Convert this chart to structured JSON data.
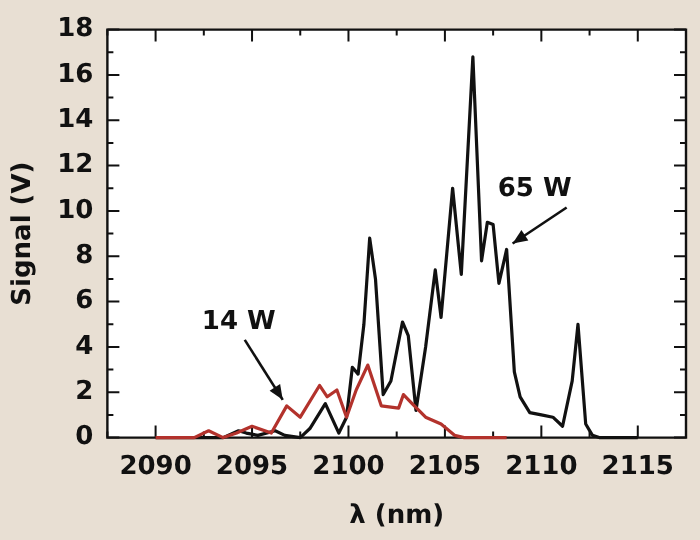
{
  "chart_data": {
    "type": "line",
    "xlabel": "λ (nm)",
    "ylabel": "Signal (V)",
    "xlim": [
      2087.5,
      2117.5
    ],
    "xticks": [
      {
        "value": 2087.5,
        "label": null
      },
      2090,
      {
        "value": 2092.5,
        "label": null
      },
      2095,
      {
        "value": 2097.5,
        "label": null
      },
      2100,
      {
        "value": 2102.5,
        "label": null
      },
      2105,
      {
        "value": 2107.5,
        "label": null
      },
      2110,
      {
        "value": 2112.5,
        "label": null
      },
      2115,
      {
        "value": 2117.5,
        "label": null
      }
    ],
    "ylim": [
      0,
      18
    ],
    "yticks": [
      0,
      {
        "value": 1,
        "label": null
      },
      2,
      {
        "value": 3,
        "label": null
      },
      4,
      {
        "value": 5,
        "label": null
      },
      6,
      {
        "value": 7,
        "label": null
      },
      8,
      {
        "value": 9,
        "label": null
      },
      10,
      {
        "value": 11,
        "label": null
      },
      12,
      {
        "value": 13,
        "label": null
      },
      14,
      {
        "value": 15,
        "label": null
      },
      16,
      {
        "value": 17,
        "label": null
      },
      18
    ],
    "grid": false,
    "legend": false,
    "marker": "none",
    "line_style": "solid",
    "series": [
      {
        "color": "#b3322c",
        "x": [
          2090,
          2092,
          2092.75,
          2093.5,
          2094.2,
          2095,
          2096,
          2096.8,
          2097.5,
          2098.5,
          2098.9,
          2099.4,
          2099.9,
          2100.4,
          2101,
          2101.7,
          2102.6,
          2102.85,
          2103.3,
          2104,
          2104.8,
          2105.5,
          2106,
          2108.2
        ],
        "values": [
          0,
          0,
          0.3,
          0,
          0.2,
          0.5,
          0.2,
          1.4,
          0.9,
          2.3,
          1.8,
          2.1,
          0.9,
          2.1,
          3.2,
          1.4,
          1.3,
          1.9,
          1.5,
          0.9,
          0.6,
          0.1,
          0,
          0
        ]
      },
      {
        "color": "#111111",
        "x": [
          2090,
          2093.5,
          2094.3,
          2094.7,
          2095.3,
          2096.2,
          2096.7,
          2097.5,
          2098,
          2098.8,
          2099.5,
          2099.9,
          2100.2,
          2100.5,
          2100.8,
          2101.1,
          2101.4,
          2101.8,
          2102.2,
          2102.8,
          2103.1,
          2103.5,
          2104,
          2104.5,
          2104.8,
          2105.4,
          2105.85,
          2106.45,
          2106.9,
          2107.2,
          2107.5,
          2107.8,
          2108.2,
          2108.6,
          2108.9,
          2109.4,
          2110,
          2110.6,
          2111.1,
          2111.6,
          2111.9,
          2112.3,
          2112.65,
          2113,
          2115
        ],
        "values": [
          0,
          0,
          0.3,
          0.2,
          0.1,
          0.3,
          0.1,
          0,
          0.4,
          1.5,
          0.2,
          0.9,
          3.1,
          2.8,
          5,
          8.8,
          7,
          1.9,
          2.5,
          5.1,
          4.5,
          1.2,
          4,
          7.4,
          5.3,
          11,
          7.2,
          16.8,
          7.8,
          9.5,
          9.4,
          6.8,
          8.3,
          2.9,
          1.8,
          1.1,
          1,
          0.9,
          0.5,
          2.5,
          5,
          0.6,
          0.1,
          0,
          0
        ]
      }
    ],
    "annotations": [
      {
        "text": "14 W",
        "x": 2096.8,
        "y": 1.4
      },
      {
        "text": "65 W",
        "x": 2108.2,
        "y": 8.3
      }
    ]
  }
}
